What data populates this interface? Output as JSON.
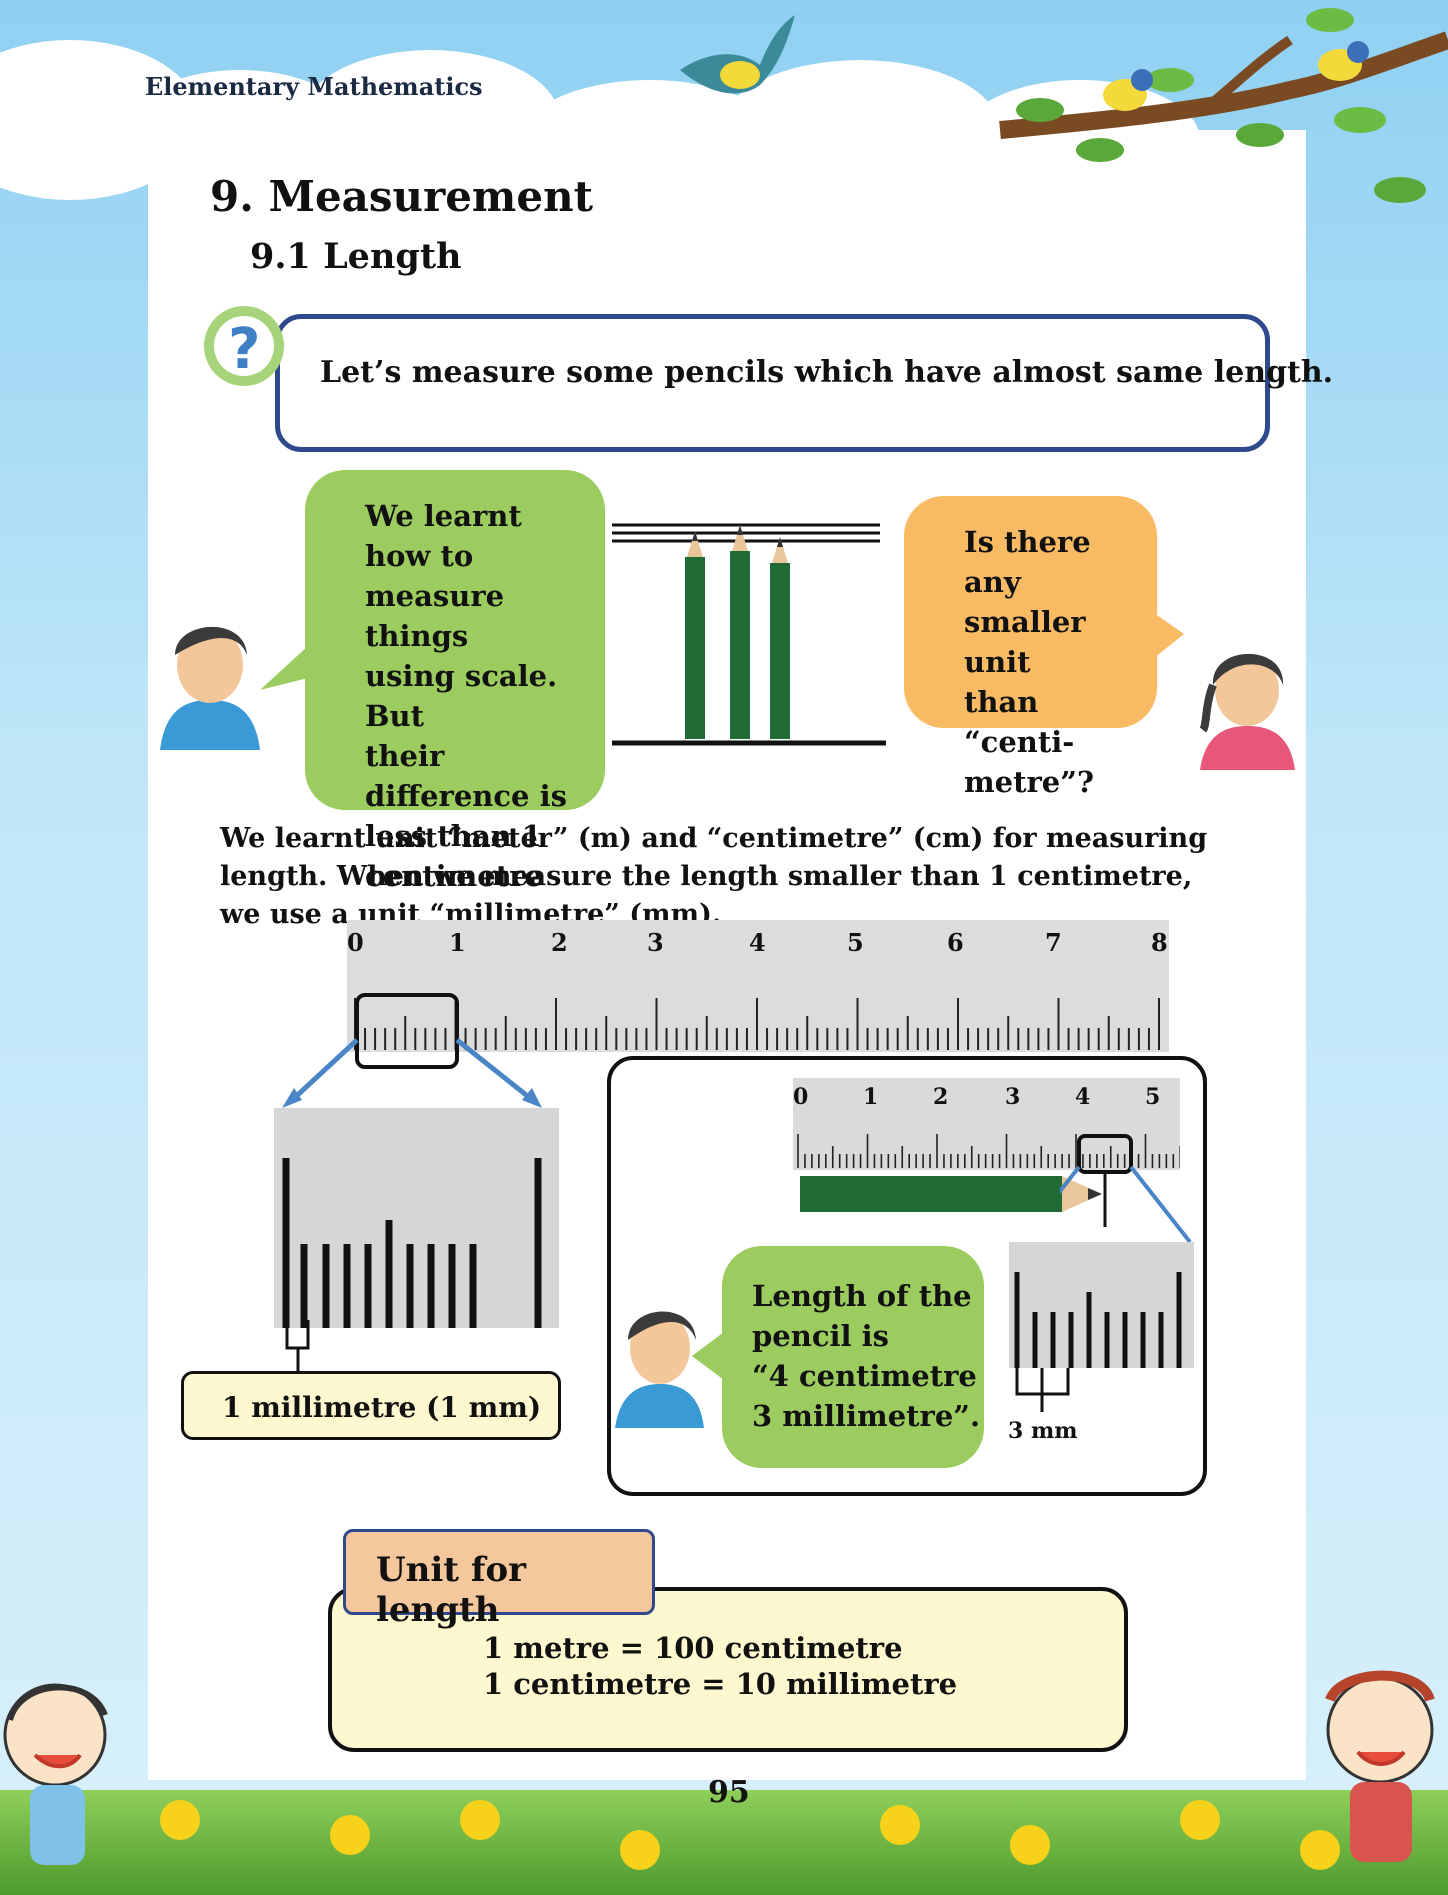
{
  "header": {
    "running_title": "Elementary Mathematics"
  },
  "chapter": {
    "title": "9. Measurement",
    "section": "9.1  Length"
  },
  "question_box": {
    "text": "Let’s measure some pencils which have almost same length."
  },
  "boy_bubble": {
    "lines": [
      "We learnt how to",
      "measure things",
      "using scale. But",
      "their difference is",
      "less than 1",
      "centimetre"
    ]
  },
  "girl_bubble": {
    "lines": [
      "Is there any",
      "smaller unit",
      "than “centi-",
      "metre”?"
    ]
  },
  "paragraph": "We learnt unit “meter” (m) and “centimetre” (cm) for measuring length. When we measure the length smaller than 1 centimetre, we use a unit “millimetre” (mm).",
  "main_ruler": {
    "labels": [
      "0",
      "1",
      "2",
      "3",
      "4",
      "5",
      "6",
      "7",
      "8"
    ]
  },
  "mm_label": "1 millimetre (1 mm)",
  "small_ruler": {
    "labels": [
      "0",
      "1",
      "2",
      "3",
      "4",
      "5"
    ]
  },
  "length_bubble": {
    "lines": [
      "Length of the",
      "pencil is",
      "“4 centimetre",
      "3 millimetre”."
    ]
  },
  "mm_caption": "3 mm",
  "unit_box": {
    "heading": "Unit for length",
    "line1": "1 metre   = 100 centimetre",
    "line2": "1 centimetre = 10 millimetre"
  },
  "page_number": "95",
  "colors": {
    "pencil": "#1f6a35",
    "bubble_green": "#9ccc5f",
    "bubble_orange": "#f8bb63",
    "box_border": "#2f4a8c",
    "unit_tab": "#f5c79d",
    "note_fill": "#fdf8d0"
  }
}
